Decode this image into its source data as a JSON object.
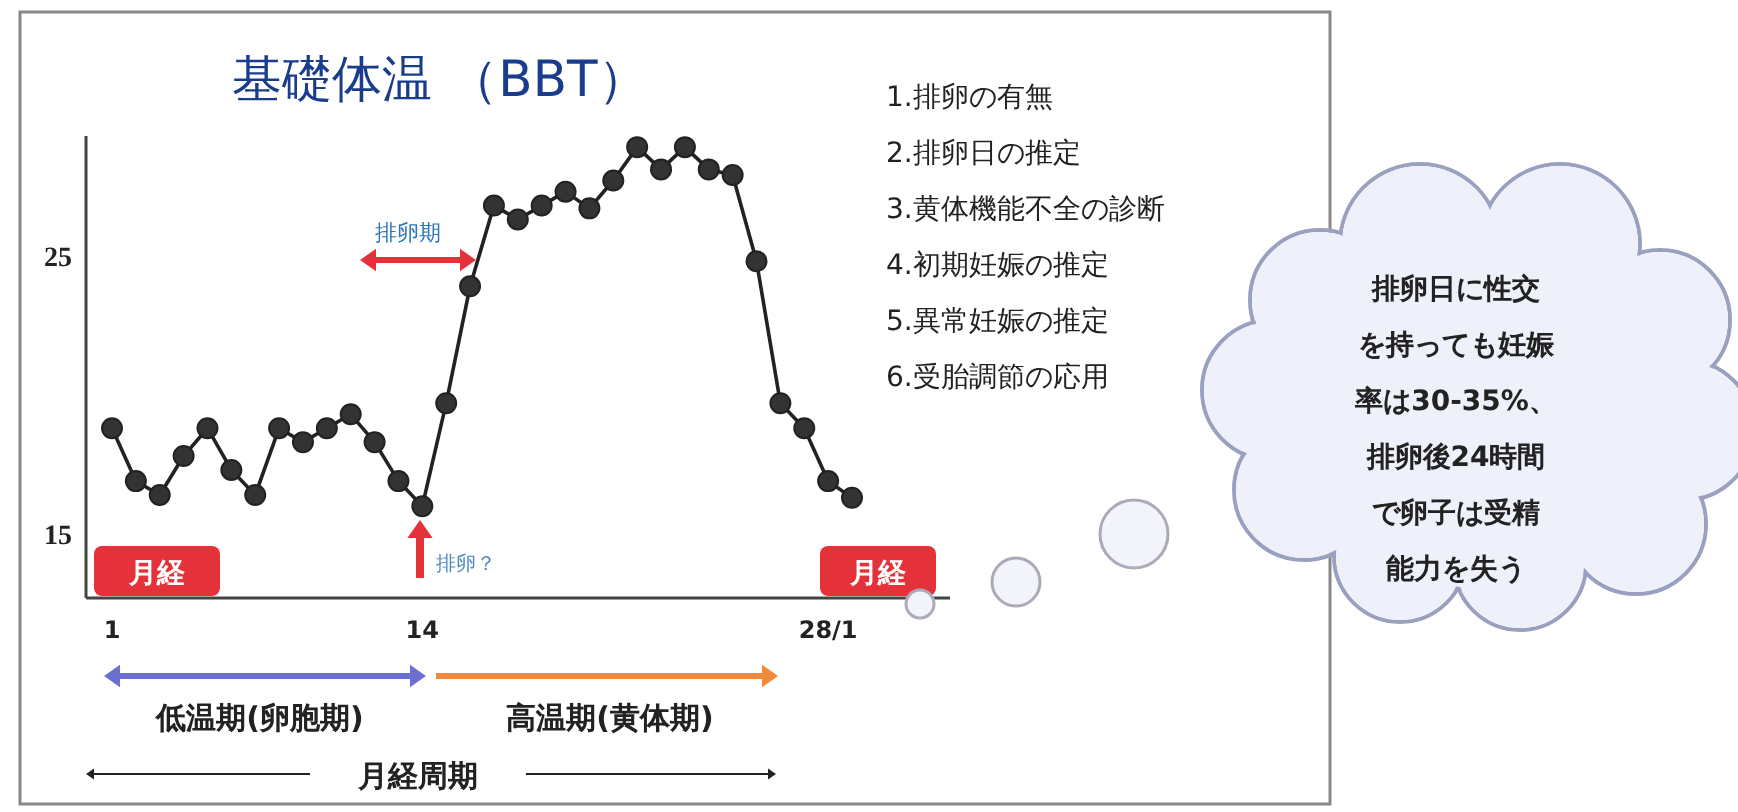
{
  "chart_data": {
    "type": "line",
    "title": "基礎体温 （BBT）",
    "categories": [
      "1",
      null,
      null,
      null,
      null,
      null,
      null,
      null,
      null,
      null,
      null,
      null,
      null,
      "14",
      null,
      null,
      null,
      null,
      null,
      null,
      null,
      null,
      null,
      null,
      null,
      null,
      null,
      null,
      null,
      null,
      "28/1",
      null
    ],
    "series": [
      {
        "color": "#222222",
        "values": [
          18.8,
          16.9,
          16.4,
          17.8,
          18.8,
          17.3,
          16.4,
          18.8,
          18.3,
          18.8,
          19.3,
          18.3,
          16.9,
          16.0,
          19.7,
          23.9,
          26.8,
          26.3,
          26.8,
          27.3,
          26.7,
          27.7,
          28.9,
          28.1,
          28.9,
          28.1,
          27.9,
          24.8,
          19.7,
          18.8,
          16.9,
          16.3
        ]
      }
    ],
    "ylim": [
      12.7,
      29.3
    ],
    "yticks": [
      15,
      25
    ],
    "marker": "circle",
    "line_style": "solid",
    "grid": false,
    "annotations": [
      "排卵期",
      "排卵？",
      "月経",
      "月経",
      "低温期(卵胞期)",
      "高温期(黄体期)",
      "月経周期",
      "1.排卵の有無",
      "2.排卵日の推定",
      "3.黄体機能不全の診断",
      "4.初期妊娠の推定",
      "5.異常妊娠の推定",
      "6.受胎調節の応用",
      "排卵日に性交",
      "を持っても妊娠",
      "率は30-35%、",
      "排卵後24時間",
      "で卵子は受精",
      "能力を失う"
    ]
  }
}
